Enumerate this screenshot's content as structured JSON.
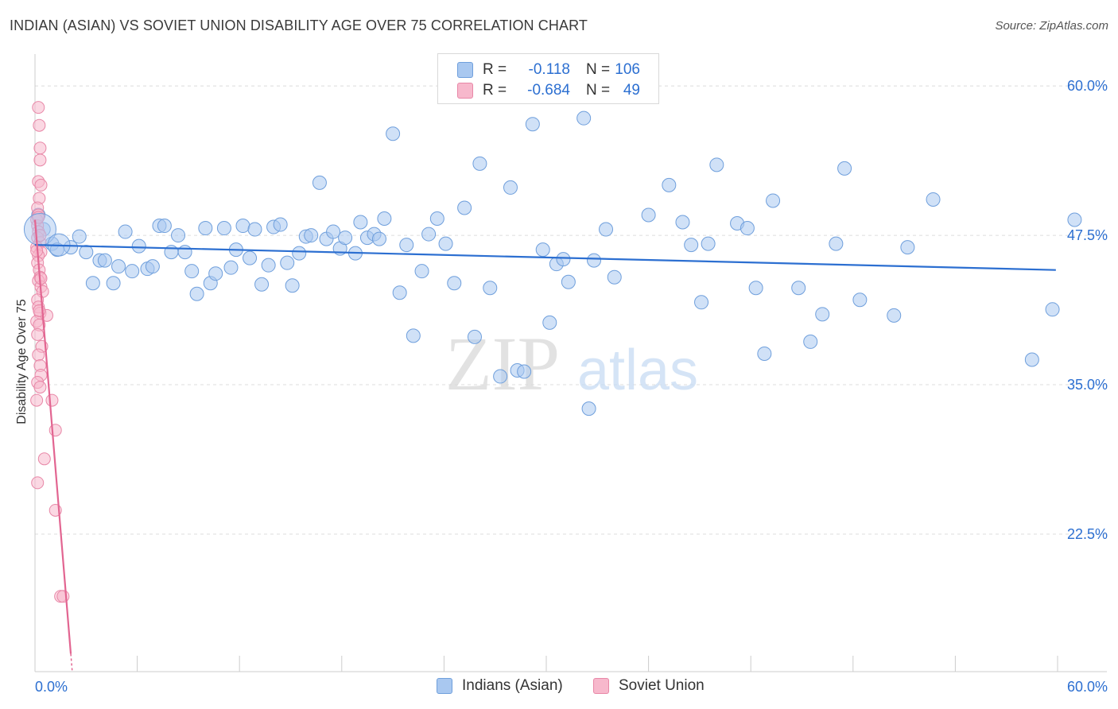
{
  "title": "INDIAN (ASIAN) VS SOVIET UNION DISABILITY AGE OVER 75 CORRELATION CHART",
  "source": "Source: ZipAtlas.com",
  "watermark": {
    "zip": "ZIP",
    "atlas": "atlas"
  },
  "legend": {
    "rows": [
      {
        "r_label": "R =",
        "r_value": "-0.118",
        "n_label": "N =",
        "n_value": "106",
        "color": "#a9c8f0",
        "border": "#6f9fdc"
      },
      {
        "r_label": "R =",
        "r_value": "-0.684",
        "n_label": "N =",
        "n_value": "49",
        "color": "#f7b8cc",
        "border": "#e887a7"
      }
    ]
  },
  "bottom_legend": [
    {
      "label": "Indians (Asian)",
      "color": "#a9c8f0",
      "border": "#6f9fdc"
    },
    {
      "label": "Soviet Union",
      "color": "#f7b8cc",
      "border": "#e887a7"
    }
  ],
  "chart_data": {
    "type": "scatter",
    "title": "INDIAN (ASIAN) VS SOVIET UNION DISABILITY AGE OVER 75 CORRELATION CHART",
    "xlabel": "",
    "ylabel": "Disability Age Over 75",
    "xlim": [
      0,
      60
    ],
    "ylim": [
      11,
      62
    ],
    "x_tick_labels": [
      "0.0%",
      "60.0%"
    ],
    "y_ticks": [
      22.5,
      35.0,
      47.5,
      60.0
    ],
    "y_tick_labels": [
      "22.5%",
      "35.0%",
      "47.5%",
      "60.0%"
    ],
    "grid": true,
    "series": [
      {
        "name": "Indians (Asian)",
        "color": "#a9c8f0",
        "stroke": "#6f9fdc",
        "trend": {
          "x": [
            0,
            59.9
          ],
          "y": [
            46.7,
            44.6
          ],
          "color": "#2c6fd1"
        },
        "points": [
          [
            0.2,
            49.2
          ],
          [
            0.5,
            48.0
          ],
          [
            1.0,
            46.8
          ],
          [
            1.3,
            46.3
          ],
          [
            2.1,
            46.5
          ],
          [
            2.6,
            47.4
          ],
          [
            3.0,
            46.1
          ],
          [
            3.4,
            43.5
          ],
          [
            3.8,
            45.4
          ],
          [
            4.1,
            45.4
          ],
          [
            4.6,
            43.5
          ],
          [
            4.9,
            44.9
          ],
          [
            5.3,
            47.8
          ],
          [
            5.7,
            44.5
          ],
          [
            6.1,
            46.6
          ],
          [
            6.6,
            44.7
          ],
          [
            6.9,
            44.9
          ],
          [
            7.3,
            48.3
          ],
          [
            7.6,
            48.3
          ],
          [
            8.0,
            46.1
          ],
          [
            8.4,
            47.5
          ],
          [
            8.8,
            46.1
          ],
          [
            9.2,
            44.5
          ],
          [
            9.5,
            42.6
          ],
          [
            10.0,
            48.1
          ],
          [
            10.3,
            43.5
          ],
          [
            10.6,
            44.3
          ],
          [
            11.1,
            48.1
          ],
          [
            11.5,
            44.8
          ],
          [
            11.8,
            46.3
          ],
          [
            12.2,
            48.3
          ],
          [
            12.6,
            45.6
          ],
          [
            12.9,
            48.0
          ],
          [
            13.3,
            43.4
          ],
          [
            13.7,
            45.0
          ],
          [
            14.0,
            48.2
          ],
          [
            14.4,
            48.4
          ],
          [
            14.8,
            45.2
          ],
          [
            15.1,
            43.3
          ],
          [
            15.5,
            46.0
          ],
          [
            15.9,
            47.4
          ],
          [
            16.2,
            47.5
          ],
          [
            16.7,
            51.9
          ],
          [
            17.1,
            47.2
          ],
          [
            17.5,
            47.8
          ],
          [
            17.9,
            46.4
          ],
          [
            18.2,
            47.3
          ],
          [
            18.8,
            46.0
          ],
          [
            19.1,
            48.6
          ],
          [
            19.5,
            47.3
          ],
          [
            19.9,
            47.6
          ],
          [
            20.2,
            47.2
          ],
          [
            20.5,
            48.9
          ],
          [
            21.0,
            56.0
          ],
          [
            21.4,
            42.7
          ],
          [
            21.8,
            46.7
          ],
          [
            22.2,
            39.1
          ],
          [
            22.7,
            44.5
          ],
          [
            23.1,
            47.6
          ],
          [
            23.6,
            48.9
          ],
          [
            24.1,
            46.8
          ],
          [
            24.6,
            43.5
          ],
          [
            25.2,
            49.8
          ],
          [
            25.8,
            39.0
          ],
          [
            26.1,
            53.5
          ],
          [
            26.7,
            43.1
          ],
          [
            27.3,
            35.7
          ],
          [
            27.9,
            51.5
          ],
          [
            28.3,
            36.2
          ],
          [
            28.7,
            36.1
          ],
          [
            29.2,
            56.8
          ],
          [
            29.8,
            46.3
          ],
          [
            30.2,
            40.2
          ],
          [
            30.6,
            45.1
          ],
          [
            31.0,
            45.5
          ],
          [
            31.3,
            43.6
          ],
          [
            32.2,
            57.3
          ],
          [
            32.5,
            33.0
          ],
          [
            32.8,
            45.4
          ],
          [
            33.5,
            48.0
          ],
          [
            34.0,
            44.0
          ],
          [
            36.0,
            49.2
          ],
          [
            37.2,
            51.7
          ],
          [
            38.0,
            48.6
          ],
          [
            38.5,
            46.7
          ],
          [
            39.1,
            41.9
          ],
          [
            39.5,
            46.8
          ],
          [
            40.0,
            53.4
          ],
          [
            41.2,
            48.5
          ],
          [
            41.8,
            48.1
          ],
          [
            42.3,
            43.1
          ],
          [
            42.8,
            37.6
          ],
          [
            43.3,
            50.4
          ],
          [
            44.8,
            43.1
          ],
          [
            45.5,
            38.6
          ],
          [
            46.2,
            40.9
          ],
          [
            47.0,
            46.8
          ],
          [
            47.5,
            53.1
          ],
          [
            48.4,
            42.1
          ],
          [
            50.4,
            40.8
          ],
          [
            51.2,
            46.5
          ],
          [
            52.7,
            50.5
          ],
          [
            58.5,
            37.1
          ],
          [
            59.7,
            41.3
          ],
          [
            61.0,
            48.8
          ]
        ]
      },
      {
        "name": "Soviet Union",
        "color": "#f7b8cc",
        "stroke": "#e887a7",
        "trend": {
          "x": [
            0,
            2.1
          ],
          "y": [
            48.8,
            12.5
          ],
          "color": "#e26591"
        },
        "points": [
          [
            0.2,
            58.2
          ],
          [
            0.25,
            56.7
          ],
          [
            0.3,
            54.8
          ],
          [
            0.3,
            53.8
          ],
          [
            0.2,
            52.0
          ],
          [
            0.35,
            51.7
          ],
          [
            0.25,
            50.6
          ],
          [
            0.15,
            49.8
          ],
          [
            0.2,
            49.2
          ],
          [
            0.1,
            48.8
          ],
          [
            0.15,
            48.3
          ],
          [
            0.2,
            47.8
          ],
          [
            0.15,
            47.3
          ],
          [
            0.3,
            46.9
          ],
          [
            0.1,
            46.5
          ],
          [
            0.35,
            46.1
          ],
          [
            0.2,
            45.8
          ],
          [
            0.15,
            45.2
          ],
          [
            0.25,
            44.6
          ],
          [
            0.3,
            44.0
          ],
          [
            0.2,
            43.7
          ],
          [
            0.35,
            43.2
          ],
          [
            0.45,
            42.8
          ],
          [
            0.15,
            42.1
          ],
          [
            0.2,
            41.5
          ],
          [
            0.3,
            41.0
          ],
          [
            0.7,
            40.8
          ],
          [
            0.1,
            40.3
          ],
          [
            0.25,
            40.0
          ],
          [
            0.15,
            39.2
          ],
          [
            0.4,
            38.2
          ],
          [
            0.2,
            37.5
          ],
          [
            0.3,
            36.6
          ],
          [
            0.35,
            35.8
          ],
          [
            0.15,
            35.2
          ],
          [
            0.3,
            34.8
          ],
          [
            0.1,
            33.7
          ],
          [
            1.0,
            33.7
          ],
          [
            1.2,
            31.2
          ],
          [
            0.55,
            28.8
          ],
          [
            0.15,
            26.8
          ],
          [
            1.2,
            24.5
          ],
          [
            1.5,
            17.3
          ],
          [
            1.65,
            17.3
          ],
          [
            0.2,
            49.0
          ],
          [
            0.3,
            47.5
          ],
          [
            0.1,
            46.2
          ],
          [
            0.25,
            41.2
          ],
          [
            0.35,
            43.9
          ]
        ]
      }
    ]
  }
}
